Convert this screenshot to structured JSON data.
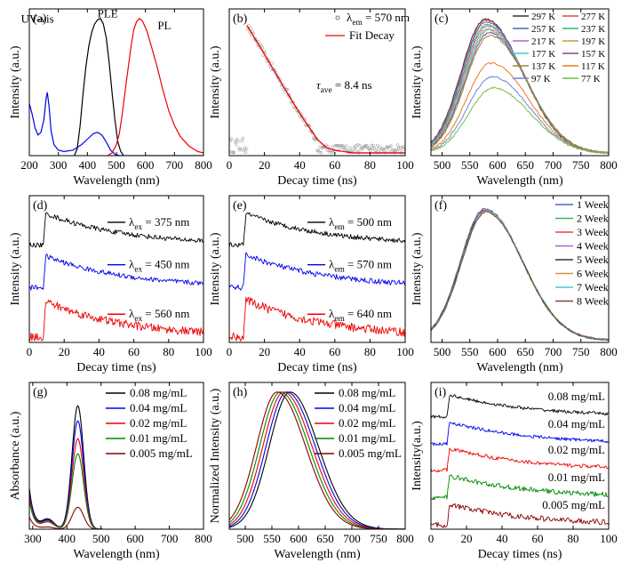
{
  "chart_data": [
    {
      "panel_label": "(a)",
      "type": "line",
      "xlabel": "Wavelength (nm)",
      "ylabel": "Intensity (a.u.)",
      "xlim": [
        200,
        800
      ],
      "ylim": [
        0,
        1.07
      ],
      "xticks": [
        200,
        300,
        400,
        500,
        600,
        700,
        800
      ],
      "curve_labels": [
        {
          "text": "UV-vis",
          "x": 228,
          "y": 0.97
        },
        {
          "text": "PLE",
          "x": 470,
          "y": 1.01
        },
        {
          "text": "PL",
          "x": 665,
          "y": 0.92
        }
      ],
      "series": [
        {
          "color": "#0000ee",
          "points": [
            [
              200,
              0.38
            ],
            [
              210,
              0.3
            ],
            [
              220,
              0.2
            ],
            [
              230,
              0.15
            ],
            [
              240,
              0.17
            ],
            [
              250,
              0.26
            ],
            [
              258,
              0.42
            ],
            [
              262,
              0.46
            ],
            [
              268,
              0.36
            ],
            [
              275,
              0.18
            ],
            [
              285,
              0.08
            ],
            [
              300,
              0.04
            ],
            [
              320,
              0.03
            ],
            [
              350,
              0.04
            ],
            [
              380,
              0.08
            ],
            [
              400,
              0.12
            ],
            [
              420,
              0.16
            ],
            [
              435,
              0.17
            ],
            [
              450,
              0.15
            ],
            [
              465,
              0.1
            ],
            [
              480,
              0.04
            ],
            [
              495,
              0.01
            ],
            [
              510,
              0.0
            ],
            [
              800,
              0.0
            ]
          ]
        },
        {
          "color": "#000000",
          "points": [
            [
              355,
              0.0
            ],
            [
              365,
              0.05
            ],
            [
              375,
              0.22
            ],
            [
              385,
              0.45
            ],
            [
              395,
              0.65
            ],
            [
              405,
              0.8
            ],
            [
              415,
              0.9
            ],
            [
              425,
              0.96
            ],
            [
              435,
              0.99
            ],
            [
              445,
              1.0
            ],
            [
              455,
              0.96
            ],
            [
              465,
              0.86
            ],
            [
              475,
              0.68
            ],
            [
              485,
              0.46
            ],
            [
              495,
              0.26
            ],
            [
              505,
              0.1
            ],
            [
              515,
              0.03
            ],
            [
              525,
              0.0
            ]
          ]
        },
        {
          "color": "#ee0000",
          "points": [
            [
              470,
              0.0
            ],
            [
              485,
              0.02
            ],
            [
              500,
              0.08
            ],
            [
              510,
              0.16
            ],
            [
              520,
              0.3
            ],
            [
              530,
              0.47
            ],
            [
              540,
              0.63
            ],
            [
              550,
              0.79
            ],
            [
              560,
              0.92
            ],
            [
              570,
              0.98
            ],
            [
              580,
              1.0
            ],
            [
              590,
              0.98
            ],
            [
              605,
              0.91
            ],
            [
              620,
              0.8
            ],
            [
              640,
              0.65
            ],
            [
              660,
              0.48
            ],
            [
              680,
              0.33
            ],
            [
              700,
              0.22
            ],
            [
              720,
              0.14
            ],
            [
              750,
              0.07
            ],
            [
              780,
              0.03
            ],
            [
              800,
              0.02
            ]
          ]
        }
      ]
    },
    {
      "panel_label": "(b)",
      "type": "scatter",
      "xlabel": "Decay time (ns)",
      "ylabel": "Intensity (a.u.)",
      "xlim": [
        0,
        100
      ],
      "ylim": [
        0,
        1.07
      ],
      "xticks": [
        0,
        20,
        40,
        60,
        80,
        100
      ],
      "legend": [
        {
          "label_pre": "λ",
          "label_sub": "em",
          "label_post": " = 570 nm",
          "color": "#777777",
          "marker": "circle"
        },
        {
          "label": "Fit Decay",
          "color": "#ee0000",
          "marker": "line"
        }
      ],
      "annotation": {
        "pre": "τ",
        "sub": "ave",
        "post": " = 8.4 ns"
      },
      "decay": {
        "t0": 10,
        "peak": 0.95,
        "slope": 0.0213,
        "noise_floor": 0.02,
        "noise_amp": 0.06
      },
      "series": [
        {
          "name": "Fit Decay",
          "color": "#ee0000",
          "points": [
            [
              10,
              0.95
            ],
            [
              20,
              0.74
            ],
            [
              30,
              0.52
            ],
            [
              40,
              0.31
            ],
            [
              50,
              0.12
            ],
            [
              55,
              0.06
            ],
            [
              60,
              0.04
            ],
            [
              70,
              0.02
            ],
            [
              100,
              0.02
            ]
          ]
        }
      ]
    },
    {
      "panel_label": "(c)",
      "type": "line",
      "xlabel": "Wavelength (nm)",
      "ylabel": "Intensity (a.u.)",
      "xlim": [
        480,
        800
      ],
      "ylim": [
        0,
        1.07
      ],
      "xticks": [
        500,
        550,
        600,
        650,
        700,
        750,
        800
      ],
      "series": [
        {
          "name": "297 K",
          "color": "#333333",
          "peak": 0.98,
          "center": 578
        },
        {
          "name": "277 K",
          "color": "#ee4444",
          "peak": 0.97,
          "center": 579
        },
        {
          "name": "257 K",
          "color": "#4466cc",
          "peak": 0.96,
          "center": 580
        },
        {
          "name": "237 K",
          "color": "#33bb55",
          "peak": 0.94,
          "center": 581
        },
        {
          "name": "217 K",
          "color": "#aa66cc",
          "peak": 0.93,
          "center": 582
        },
        {
          "name": "197 K",
          "color": "#cc9933",
          "peak": 0.91,
          "center": 583
        },
        {
          "name": "177 K",
          "color": "#44cccc",
          "peak": 0.9,
          "center": 584
        },
        {
          "name": "157 K",
          "color": "#884488",
          "peak": 0.88,
          "center": 585
        },
        {
          "name": "137 K",
          "color": "#998833",
          "peak": 0.86,
          "center": 586
        },
        {
          "name": "117 K",
          "color": "#ee7722",
          "peak": 0.66,
          "center": 588
        },
        {
          "name": "97 K",
          "color": "#6688dd",
          "peak": 0.56,
          "center": 590
        },
        {
          "name": "77 K",
          "color": "#77bb44",
          "peak": 0.48,
          "center": 592
        }
      ]
    },
    {
      "panel_label": "(d)",
      "type": "line",
      "xlabel": "Decay time (ns)",
      "ylabel": "Intensity (a.u.)",
      "xlim": [
        0,
        100
      ],
      "ylim": [
        0,
        1.07
      ],
      "xticks": [
        0,
        20,
        40,
        60,
        80,
        100
      ],
      "series": [
        {
          "label_pre": "λ",
          "label_sub": "ex",
          "label_post": " = 375 nm",
          "color": "#000000",
          "baseline": 0.71,
          "amp": 0.23,
          "t0": 8,
          "noise": 0.018
        },
        {
          "label_pre": "λ",
          "label_sub": "ex",
          "label_post": " = 450 nm",
          "color": "#0000ee",
          "baseline": 0.4,
          "amp": 0.23,
          "t0": 8,
          "noise": 0.018
        },
        {
          "label_pre": "λ",
          "label_sub": "ex",
          "label_post": " = 560 nm",
          "color": "#ee0000",
          "baseline": 0.04,
          "amp": 0.26,
          "t0": 8,
          "noise": 0.03
        }
      ]
    },
    {
      "panel_label": "(e)",
      "type": "line",
      "xlabel": "Decay time (ns)",
      "ylabel": "Intensity (a.u.)",
      "xlim": [
        0,
        100
      ],
      "ylim": [
        0,
        1.07
      ],
      "xticks": [
        0,
        20,
        40,
        60,
        80,
        100
      ],
      "series": [
        {
          "label_pre": "λ",
          "label_sub": "em",
          "label_post": " = 500 nm",
          "color": "#000000",
          "baseline": 0.71,
          "amp": 0.23,
          "t0": 8,
          "noise": 0.018
        },
        {
          "label_pre": "λ",
          "label_sub": "em",
          "label_post": " = 570 nm",
          "color": "#0000ee",
          "baseline": 0.4,
          "amp": 0.24,
          "t0": 8,
          "noise": 0.02
        },
        {
          "label_pre": "λ",
          "label_sub": "em",
          "label_post": " = 640 nm",
          "color": "#ee0000",
          "baseline": 0.04,
          "amp": 0.27,
          "t0": 8,
          "noise": 0.032
        }
      ]
    },
    {
      "panel_label": "(f)",
      "type": "line",
      "xlabel": "Wavelength (nm)",
      "ylabel": "Intensity (a.u.)",
      "xlim": [
        480,
        800
      ],
      "ylim": [
        0,
        1.07
      ],
      "xticks": [
        500,
        550,
        600,
        650,
        700,
        750,
        800
      ],
      "series": [
        {
          "name": "1 Week",
          "color": "#4466cc",
          "peak": 0.96,
          "center": 577
        },
        {
          "name": "2 Week",
          "color": "#33bb55",
          "peak": 0.95,
          "center": 577
        },
        {
          "name": "3 Week",
          "color": "#ee4444",
          "peak": 0.955,
          "center": 578
        },
        {
          "name": "4 Week",
          "color": "#aa66cc",
          "peak": 0.95,
          "center": 578
        },
        {
          "name": "5 Week",
          "color": "#333333",
          "peak": 0.945,
          "center": 578
        },
        {
          "name": "6 Week",
          "color": "#cc9933",
          "peak": 0.94,
          "center": 579
        },
        {
          "name": "7 Week",
          "color": "#44cccc",
          "peak": 0.945,
          "center": 579
        },
        {
          "name": "8 Week",
          "color": "#884444",
          "peak": 0.935,
          "center": 579
        }
      ]
    },
    {
      "panel_label": "(g)",
      "type": "line",
      "xlabel": "Wavelength (nm)",
      "ylabel": "Absorbance (a.u.)",
      "xlim": [
        290,
        800
      ],
      "ylim": [
        0,
        1.07
      ],
      "xticks": [
        300,
        400,
        500,
        600,
        700,
        800
      ],
      "series": [
        {
          "name": "0.08 mg/mL",
          "color": "#000000",
          "peak": 0.9,
          "trough": 0.1,
          "edge": 0.3
        },
        {
          "name": "0.04 mg/mL",
          "color": "#0000ee",
          "peak": 0.79,
          "trough": 0.09,
          "edge": 0.27
        },
        {
          "name": "0.02 mg/mL",
          "color": "#ee0000",
          "peak": 0.66,
          "trough": 0.08,
          "edge": 0.24
        },
        {
          "name": "0.01 mg/mL",
          "color": "#008800",
          "peak": 0.55,
          "trough": 0.07,
          "edge": 0.21
        },
        {
          "name": "0.005 mg/mL",
          "color": "#880000",
          "peak": 0.16,
          "trough": 0.02,
          "edge": 0.09
        }
      ]
    },
    {
      "panel_label": "(h)",
      "type": "line",
      "xlabel": "Wavelength (nm)",
      "ylabel": "Normalized Intensity (a.u.)",
      "xlim": [
        470,
        800
      ],
      "ylim": [
        0,
        1.07
      ],
      "xticks": [
        500,
        550,
        600,
        650,
        700,
        750,
        800
      ],
      "series": [
        {
          "name": "0.08 mg/mL",
          "color": "#000000",
          "center": 584
        },
        {
          "name": "0.04 mg/mL",
          "color": "#0000ee",
          "center": 578
        },
        {
          "name": "0.02 mg/mL",
          "color": "#ee0000",
          "center": 572
        },
        {
          "name": "0.01 mg/mL",
          "color": "#008800",
          "center": 566
        },
        {
          "name": "0.005 mg/mL",
          "color": "#880000",
          "center": 560
        }
      ]
    },
    {
      "panel_label": "(i)",
      "type": "line",
      "xlabel": "Decay times (ns)",
      "ylabel": "Intensity(a.u.)",
      "xlim": [
        0,
        100
      ],
      "ylim": [
        0,
        1.07
      ],
      "xticks": [
        0,
        20,
        40,
        60,
        80,
        100
      ],
      "series": [
        {
          "name": "0.08 mg/mL",
          "color": "#000000",
          "baseline": 0.82,
          "amp": 0.16,
          "t0": 9,
          "noise": 0.012
        },
        {
          "name": "0.04 mg/mL",
          "color": "#0000ee",
          "baseline": 0.62,
          "amp": 0.16,
          "t0": 9,
          "noise": 0.012
        },
        {
          "name": "0.02 mg/mL",
          "color": "#ee0000",
          "baseline": 0.43,
          "amp": 0.16,
          "t0": 9,
          "noise": 0.014
        },
        {
          "name": "0.01 mg/mL",
          "color": "#008800",
          "baseline": 0.23,
          "amp": 0.16,
          "t0": 9,
          "noise": 0.018
        },
        {
          "name": "0.005 mg/mL",
          "color": "#880000",
          "baseline": 0.03,
          "amp": 0.15,
          "t0": 9,
          "noise": 0.02
        }
      ]
    }
  ]
}
